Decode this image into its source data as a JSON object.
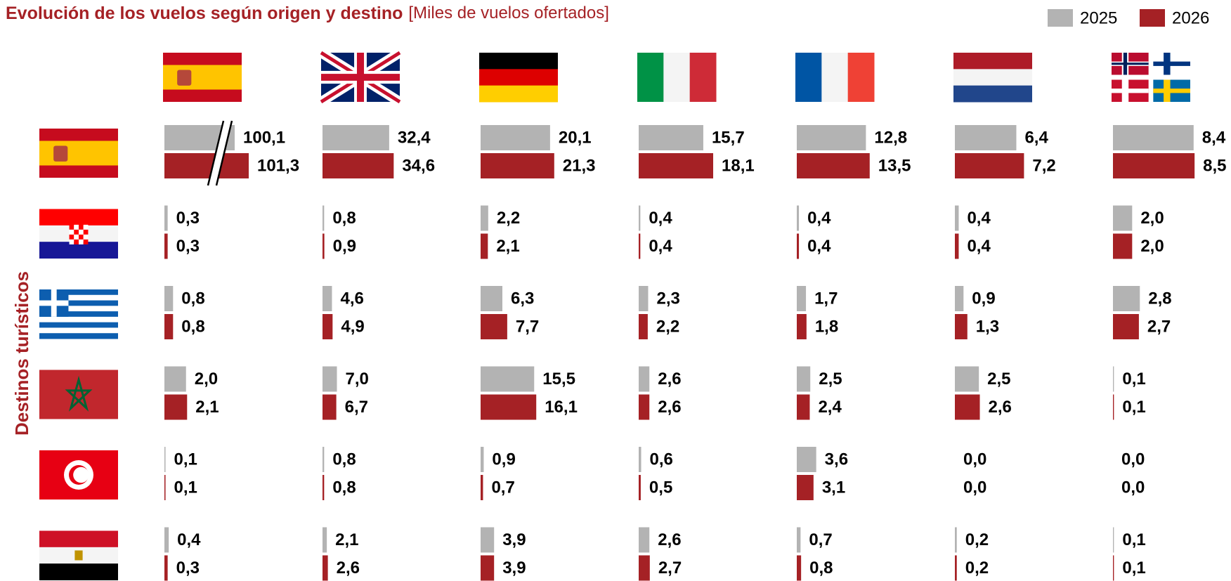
{
  "chart_data": {
    "type": "bar-grid",
    "title": "Evolución de los vuelos según origen y destino",
    "subtitle": "[Miles de vuelos ofertados]",
    "y_label": "Destinos turísticos",
    "xlim": [
      [
        0,
        8
      ],
      [
        0,
        42
      ],
      [
        0,
        25
      ],
      [
        0,
        21
      ],
      [
        0,
        16
      ],
      [
        0,
        9
      ],
      [
        0,
        9
      ]
    ],
    "series": [
      {
        "name": "2025",
        "color": "#b3b3b3",
        "values": [
          [
            100.1,
            32.4,
            20.1,
            15.7,
            12.8,
            6.4,
            8.4
          ],
          [
            0.3,
            0.8,
            2.2,
            0.4,
            0.4,
            0.4,
            2.0
          ],
          [
            0.8,
            4.6,
            6.3,
            2.3,
            1.7,
            0.9,
            2.8
          ],
          [
            2.0,
            7.0,
            15.5,
            2.6,
            2.5,
            2.5,
            0.1
          ],
          [
            0.1,
            0.8,
            0.9,
            0.6,
            3.6,
            0.0,
            0.0
          ],
          [
            0.4,
            2.1,
            3.9,
            2.6,
            0.7,
            0.2,
            0.1
          ]
        ],
        "value_labels": [
          [
            "100,1",
            "32,4",
            "20,1",
            "15,7",
            "12,8",
            "6,4",
            "8,4"
          ],
          [
            "0,3",
            "0,8",
            "2,2",
            "0,4",
            "0,4",
            "0,4",
            "2,0"
          ],
          [
            "0,8",
            "4,6",
            "6,3",
            "2,3",
            "1,7",
            "0,9",
            "2,8"
          ],
          [
            "2,0",
            "7,0",
            "15,5",
            "2,6",
            "2,5",
            "2,5",
            "0,1"
          ],
          [
            "0,1",
            "0,8",
            "0,9",
            "0,6",
            "3,6",
            "0,0",
            "0,0"
          ],
          [
            "0,4",
            "2,1",
            "3,9",
            "2,6",
            "0,7",
            "0,2",
            "0,1"
          ]
        ]
      },
      {
        "name": "2026",
        "color": "#a52125",
        "values": [
          [
            101.3,
            34.6,
            21.3,
            18.1,
            13.5,
            7.2,
            8.5
          ],
          [
            0.3,
            0.9,
            2.1,
            0.4,
            0.4,
            0.4,
            2.0
          ],
          [
            0.8,
            4.9,
            7.7,
            2.2,
            1.8,
            1.3,
            2.7
          ],
          [
            2.1,
            6.7,
            16.1,
            2.6,
            2.4,
            2.6,
            0.1
          ],
          [
            0.1,
            0.8,
            0.7,
            0.5,
            3.1,
            0.0,
            0.0
          ],
          [
            0.3,
            2.6,
            3.9,
            2.7,
            0.8,
            0.2,
            0.1
          ]
        ],
        "value_labels": [
          [
            "101,3",
            "34,6",
            "21,3",
            "18,1",
            "13,5",
            "7,2",
            "8,5"
          ],
          [
            "0,3",
            "0,9",
            "2,1",
            "0,4",
            "0,4",
            "0,4",
            "2,0"
          ],
          [
            "0,8",
            "4,9",
            "7,7",
            "2,2",
            "1,8",
            "1,3",
            "2,7"
          ],
          [
            "2,1",
            "6,7",
            "16,1",
            "2,6",
            "2,4",
            "2,6",
            "0,1"
          ],
          [
            "0,1",
            "0,8",
            "0,7",
            "0,5",
            "3,1",
            "0,0",
            "0,0"
          ],
          [
            "0,3",
            "2,6",
            "3,9",
            "2,7",
            "0,8",
            "0,2",
            "0,1"
          ]
        ]
      }
    ]
  }
}
